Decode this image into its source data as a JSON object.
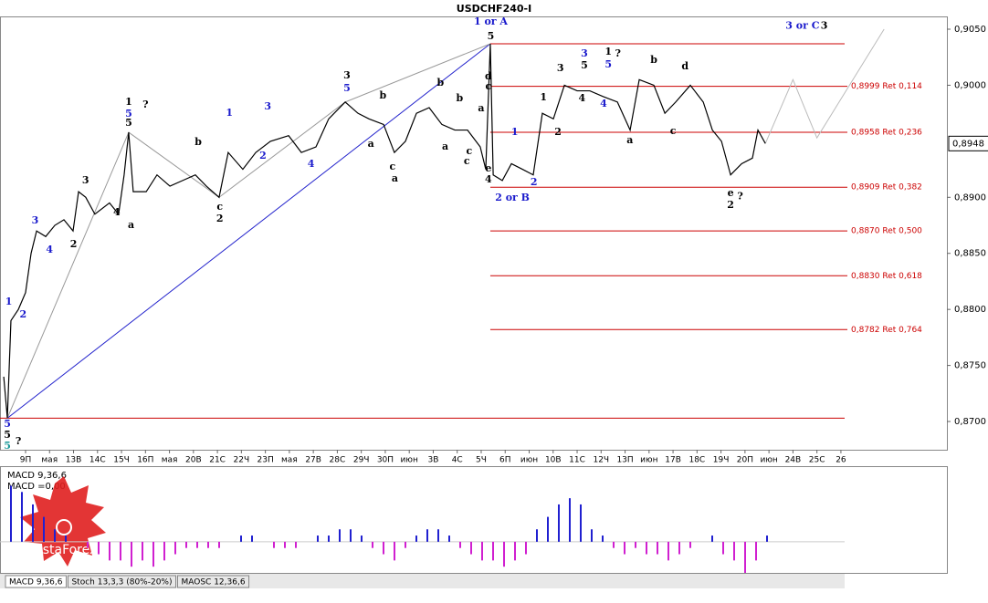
{
  "chart_data": [
    {
      "type": "line",
      "title": "USDCHF240-I",
      "color": "#000000",
      "x": [
        -0.91,
        -0.76,
        -0.61,
        -0.3,
        0,
        0.23,
        0.46,
        0.84,
        1.22,
        1.6,
        1.98,
        2.21,
        2.51,
        2.89,
        3.5,
        3.88,
        4.11,
        4.3,
        4.49,
        5.03,
        5.48,
        6.02,
        6.55,
        7.08,
        7.54,
        8.07,
        8.45,
        9.06,
        9.6,
        10.21,
        10.97,
        11.5,
        12.11,
        12.64,
        13.33,
        13.86,
        14.32,
        14.93,
        15.38,
        15.84,
        16.3,
        16.83,
        17.36,
        17.9,
        18.43,
        18.96,
        19.19,
        19.38,
        19.5,
        19.88,
        20.26,
        20.72,
        21.17,
        21.55,
        22.01,
        22.47,
        23.0,
        23.53,
        24.07,
        24.68,
        25.21,
        25.59,
        26.2,
        26.66,
        27.11,
        27.72,
        28.26,
        28.64,
        29.02,
        29.4,
        29.86,
        30.31,
        30.54,
        30.85
      ],
      "values": [
        0.874,
        0.8703,
        0.879,
        0.88,
        0.8815,
        0.885,
        0.887,
        0.8865,
        0.8875,
        0.888,
        0.887,
        0.8905,
        0.89,
        0.8885,
        0.8895,
        0.8885,
        0.892,
        0.8958,
        0.8905,
        0.8905,
        0.892,
        0.891,
        0.8915,
        0.892,
        0.891,
        0.89,
        0.894,
        0.8925,
        0.894,
        0.895,
        0.8955,
        0.894,
        0.8945,
        0.897,
        0.8985,
        0.8975,
        0.897,
        0.8965,
        0.894,
        0.895,
        0.8975,
        0.898,
        0.8965,
        0.896,
        0.896,
        0.8945,
        0.8925,
        0.9037,
        0.892,
        0.8915,
        0.893,
        0.8925,
        0.892,
        0.8975,
        0.897,
        0.9,
        0.8995,
        0.8995,
        0.899,
        0.8985,
        0.896,
        0.9005,
        0.9,
        0.8975,
        0.8985,
        0.9,
        0.8985,
        0.896,
        0.895,
        0.892,
        0.893,
        0.8935,
        0.896,
        0.8948
      ],
      "xlim": [
        -1.066,
        38.42
      ],
      "ylim": [
        0.86748,
        0.90614
      ],
      "yticks": [
        {
          "value": 0.905,
          "label": "0,9050"
        },
        {
          "value": 0.9,
          "label": "0,9000"
        },
        {
          "value": 0.89,
          "label": "0,8900"
        },
        {
          "value": 0.885,
          "label": "0,8850"
        },
        {
          "value": 0.88,
          "label": "0,8800"
        },
        {
          "value": 0.875,
          "label": "0,8750"
        },
        {
          "value": 0.87,
          "label": "0,8700"
        }
      ],
      "xticks": [
        {
          "value": 0,
          "label": "9П"
        },
        {
          "value": 1,
          "label": "мая"
        },
        {
          "value": 2,
          "label": "13В"
        },
        {
          "value": 3,
          "label": "14С"
        },
        {
          "value": 4,
          "label": "15Ч"
        },
        {
          "value": 5,
          "label": "16П"
        },
        {
          "value": 6,
          "label": "мая"
        },
        {
          "value": 7,
          "label": "20В"
        },
        {
          "value": 8,
          "label": "21С"
        },
        {
          "value": 9,
          "label": "22Ч"
        },
        {
          "value": 10,
          "label": "23П"
        },
        {
          "value": 11,
          "label": "мая"
        },
        {
          "value": 12,
          "label": "27В"
        },
        {
          "value": 13,
          "label": "28С"
        },
        {
          "value": 14,
          "label": "29Ч"
        },
        {
          "value": 15,
          "label": "30П"
        },
        {
          "value": 16,
          "label": "июн"
        },
        {
          "value": 17,
          "label": "3В"
        },
        {
          "value": 18,
          "label": "4С"
        },
        {
          "value": 19,
          "label": "5Ч"
        },
        {
          "value": 20,
          "label": "6П"
        },
        {
          "value": 21,
          "label": "июн"
        },
        {
          "value": 22,
          "label": "10В"
        },
        {
          "value": 23,
          "label": "11С"
        },
        {
          "value": 24,
          "label": "12Ч"
        },
        {
          "value": 25,
          "label": "13П"
        },
        {
          "value": 26,
          "label": "июн"
        },
        {
          "value": 27,
          "label": "17В"
        },
        {
          "value": 28,
          "label": "18С"
        },
        {
          "value": 29,
          "label": "19Ч"
        },
        {
          "value": 30,
          "label": "20П"
        },
        {
          "value": 31,
          "label": "июн"
        },
        {
          "value": 32,
          "label": "24В"
        },
        {
          "value": 33,
          "label": "25С"
        },
        {
          "value": 34,
          "label": "26"
        }
      ],
      "current": {
        "value": 0.8948,
        "label": "0,8948"
      },
      "level_color": "#cc0000",
      "levels": [
        {
          "value": 0.9037,
          "from": 19.38
        },
        {
          "value": 0.8999,
          "from": 19.38,
          "label": "0,8999 Ret 0,114"
        },
        {
          "value": 0.8958,
          "from": 19.38,
          "label": "0,8958 Ret 0,236"
        },
        {
          "value": 0.8909,
          "from": 19.38,
          "label": "0,8909 Ret 0,382"
        },
        {
          "value": 0.887,
          "from": 19.38,
          "label": "0,8870 Ret 0,500"
        },
        {
          "value": 0.883,
          "from": 19.38,
          "label": "0,8830 Ret 0,618"
        },
        {
          "value": 0.8782,
          "from": 19.38,
          "label": "0,8782 Ret 0,764"
        },
        {
          "value": 0.8703,
          "from": -1.066
        }
      ],
      "trend_lines": [
        {
          "color": "#2222cc",
          "x": [
            -0.76,
            19.38
          ],
          "values": [
            0.8703,
            0.9037
          ]
        },
        {
          "color": "#999999",
          "x": [
            -0.76,
            4.3,
            8.07,
            13.33,
            19.38
          ],
          "values": [
            0.8703,
            0.8958,
            0.89,
            0.8985,
            0.9037
          ]
        },
        {
          "color": "#bbbbbb",
          "x": [
            30.85,
            32.0,
            33.0,
            35.8
          ],
          "values": [
            0.8948,
            0.9005,
            0.8953,
            0.905
          ]
        }
      ],
      "annotations": [
        {
          "text": "1 or A",
          "x": 19.4,
          "y": 0.90565,
          "color": "#1a1acc"
        },
        {
          "text": "5",
          "x": 19.4,
          "y": 0.90435,
          "color": "#000000"
        },
        {
          "text": "3 or C",
          "x": 32.4,
          "y": 0.9053,
          "color": "#1a1acc"
        },
        {
          "text": "3",
          "x": 33.3,
          "y": 0.9053,
          "color": "#000000"
        },
        {
          "text": "2 or B",
          "x": 20.3,
          "y": 0.88994,
          "color": "#1a1acc"
        },
        {
          "text": "5",
          "x": -0.76,
          "y": 0.86976,
          "color": "#1a1acc"
        },
        {
          "text": "5",
          "x": -0.76,
          "y": 0.86878,
          "color": "#000000"
        },
        {
          "text": "5",
          "x": -0.76,
          "y": 0.8678,
          "color": "#1a9999"
        },
        {
          "text": "?",
          "x": -0.3,
          "y": 0.8682,
          "color": "#000000"
        },
        {
          "text": "1",
          "x": -0.7,
          "y": 0.88066,
          "color": "#1a1acc"
        },
        {
          "text": "2",
          "x": -0.1,
          "y": 0.87952,
          "color": "#1a1acc"
        },
        {
          "text": "3",
          "x": 0.4,
          "y": 0.88791,
          "color": "#1a1acc"
        },
        {
          "text": "4",
          "x": 1.0,
          "y": 0.8853,
          "color": "#1a1acc"
        },
        {
          "text": "2",
          "x": 2.0,
          "y": 0.8858,
          "color": "#000000"
        },
        {
          "text": "3",
          "x": 2.5,
          "y": 0.89149,
          "color": "#000000"
        },
        {
          "text": "4",
          "x": 3.8,
          "y": 0.88864,
          "color": "#000000"
        },
        {
          "text": "1",
          "x": 4.3,
          "y": 0.89849,
          "color": "#000000"
        },
        {
          "text": "5",
          "x": 4.3,
          "y": 0.89743,
          "color": "#1a1acc"
        },
        {
          "text": "5",
          "x": 4.3,
          "y": 0.89662,
          "color": "#000000"
        },
        {
          "text": "?",
          "x": 5.0,
          "y": 0.89824,
          "color": "#000000"
        },
        {
          "text": "a",
          "x": 4.4,
          "y": 0.8875,
          "color": "#000000"
        },
        {
          "text": "b",
          "x": 7.2,
          "y": 0.89491,
          "color": "#000000"
        },
        {
          "text": "c",
          "x": 8.1,
          "y": 0.88913,
          "color": "#000000"
        },
        {
          "text": "2",
          "x": 8.1,
          "y": 0.88807,
          "color": "#000000"
        },
        {
          "text": "1",
          "x": 8.5,
          "y": 0.89751,
          "color": "#1a1acc"
        },
        {
          "text": "3",
          "x": 10.1,
          "y": 0.89808,
          "color": "#1a1acc"
        },
        {
          "text": "2",
          "x": 9.9,
          "y": 0.89369,
          "color": "#1a1acc"
        },
        {
          "text": "4",
          "x": 11.9,
          "y": 0.89295,
          "color": "#1a1acc"
        },
        {
          "text": "3",
          "x": 13.4,
          "y": 0.90085,
          "color": "#000000"
        },
        {
          "text": "5",
          "x": 13.4,
          "y": 0.89971,
          "color": "#1a1acc"
        },
        {
          "text": "b",
          "x": 14.9,
          "y": 0.89906,
          "color": "#000000"
        },
        {
          "text": "a",
          "x": 14.4,
          "y": 0.89474,
          "color": "#000000"
        },
        {
          "text": "c",
          "x": 15.3,
          "y": 0.89271,
          "color": "#000000"
        },
        {
          "text": "a",
          "x": 15.4,
          "y": 0.89165,
          "color": "#000000"
        },
        {
          "text": "b",
          "x": 17.3,
          "y": 0.9002,
          "color": "#000000"
        },
        {
          "text": "a",
          "x": 17.5,
          "y": 0.8945,
          "color": "#000000"
        },
        {
          "text": "c",
          "x": 18.4,
          "y": 0.8932,
          "color": "#000000"
        },
        {
          "text": "b",
          "x": 18.1,
          "y": 0.89881,
          "color": "#000000"
        },
        {
          "text": "a",
          "x": 19.0,
          "y": 0.8979,
          "color": "#000000"
        },
        {
          "text": "c",
          "x": 18.5,
          "y": 0.8941,
          "color": "#000000"
        },
        {
          "text": "d",
          "x": 19.3,
          "y": 0.90077,
          "color": "#000000"
        },
        {
          "text": "c",
          "x": 19.3,
          "y": 0.89987,
          "color": "#000000"
        },
        {
          "text": "e",
          "x": 19.3,
          "y": 0.89255,
          "color": "#000000"
        },
        {
          "text": "4",
          "x": 19.3,
          "y": 0.89157,
          "color": "#000000"
        },
        {
          "text": "1",
          "x": 20.4,
          "y": 0.8958,
          "color": "#1a1acc"
        },
        {
          "text": "2",
          "x": 21.2,
          "y": 0.89133,
          "color": "#1a1acc"
        },
        {
          "text": "1",
          "x": 21.6,
          "y": 0.8989,
          "color": "#000000"
        },
        {
          "text": "2",
          "x": 22.2,
          "y": 0.8958,
          "color": "#000000"
        },
        {
          "text": "3",
          "x": 22.3,
          "y": 0.9015,
          "color": "#000000"
        },
        {
          "text": "3",
          "x": 23.3,
          "y": 0.9028,
          "color": "#1a1acc"
        },
        {
          "text": "5",
          "x": 23.3,
          "y": 0.90174,
          "color": "#000000"
        },
        {
          "text": "4",
          "x": 23.2,
          "y": 0.8988,
          "color": "#000000"
        },
        {
          "text": "4",
          "x": 24.1,
          "y": 0.89833,
          "color": "#1a1acc"
        },
        {
          "text": "1",
          "x": 24.3,
          "y": 0.90297,
          "color": "#000000"
        },
        {
          "text": "?",
          "x": 24.7,
          "y": 0.90282,
          "color": "#000000"
        },
        {
          "text": "5",
          "x": 24.3,
          "y": 0.90182,
          "color": "#1a1acc"
        },
        {
          "text": "a",
          "x": 25.2,
          "y": 0.89507,
          "color": "#000000"
        },
        {
          "text": "b",
          "x": 26.2,
          "y": 0.90223,
          "color": "#000000"
        },
        {
          "text": "d",
          "x": 27.5,
          "y": 0.90166,
          "color": "#000000"
        },
        {
          "text": "c",
          "x": 27.0,
          "y": 0.89588,
          "color": "#000000"
        },
        {
          "text": "e",
          "x": 29.4,
          "y": 0.89035,
          "color": "#000000"
        },
        {
          "text": "2",
          "x": 29.4,
          "y": 0.88929,
          "color": "#000000"
        },
        {
          "text": "?",
          "x": 29.8,
          "y": 0.89005,
          "color": "#000000"
        }
      ]
    },
    {
      "type": "bar",
      "title": "MACD 9,36,6",
      "subtitle": "MACD =0,00",
      "ylim": [
        -0.0005,
        0.0012
      ],
      "positive_color": "#2020d0",
      "negative_color": "#d020d0",
      "values": [
        0.0009,
        0.0008,
        0.0006,
        0.0004,
        0.0002,
        0.0001,
        0,
        -0.0001,
        -0.0002,
        -0.0003,
        -0.0003,
        -0.0004,
        -0.0003,
        -0.0004,
        -0.0003,
        -0.0002,
        -0.0001,
        -0.0001,
        -0.0001,
        -0.0001,
        0,
        0.0001,
        0.0001,
        0,
        -0.0001,
        -0.0001,
        -0.0001,
        0,
        0.0001,
        0.0001,
        0.0002,
        0.0002,
        0.0001,
        -0.0001,
        -0.0002,
        -0.0003,
        -0.0001,
        0.0001,
        0.0002,
        0.0002,
        0.0001,
        -0.0001,
        -0.0002,
        -0.0003,
        -0.0003,
        -0.0004,
        -0.0003,
        -0.0002,
        0.0002,
        0.0004,
        0.0006,
        0.0007,
        0.0006,
        0.0002,
        0.0001,
        -0.0001,
        -0.0002,
        -0.0001,
        -0.0002,
        -0.0002,
        -0.0003,
        -0.0002,
        -0.0001,
        0,
        0.0001,
        -0.0002,
        -0.0003,
        -0.0005,
        -0.0003,
        0.0001
      ]
    }
  ],
  "tabs": [
    "MACD 9,36,6",
    "Stoch 13,3,3 (80%-20%)",
    "MAOSC 12,36,6"
  ],
  "watermark": "InstaForex"
}
